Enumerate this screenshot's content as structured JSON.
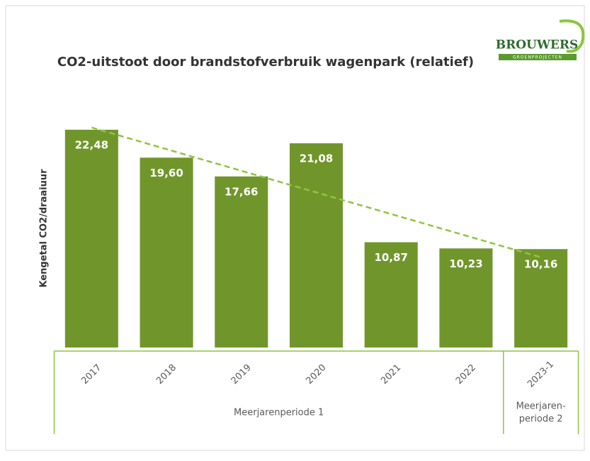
{
  "chart_data": {
    "type": "bar",
    "title": "CO2-uitstoot door brandstofverbruik wagenpark (relatief)",
    "y_label": "Kengetal CO2/draaiuur",
    "logo": {
      "name": "BROUWERS",
      "tagline": "GROENPROJECTEN"
    },
    "categories": [
      "2017",
      "2018",
      "2019",
      "2020",
      "2021",
      "2022",
      "2023-1"
    ],
    "values": [
      22.48,
      19.6,
      17.66,
      21.08,
      10.87,
      10.23,
      10.16
    ],
    "value_labels": [
      "22,48",
      "19,60",
      "17,66",
      "21,08",
      "10,87",
      "10,23",
      "10,16"
    ],
    "groups": [
      {
        "lines": [
          "Meerjarenperiode 1"
        ],
        "span": 6
      },
      {
        "lines": [
          "Meerjaren-",
          "periode 2"
        ],
        "span": 1
      }
    ],
    "color": "#70962b",
    "trendline": "linear",
    "trend_color": "#8cc63f",
    "ylim": [
      0,
      25
    ]
  }
}
